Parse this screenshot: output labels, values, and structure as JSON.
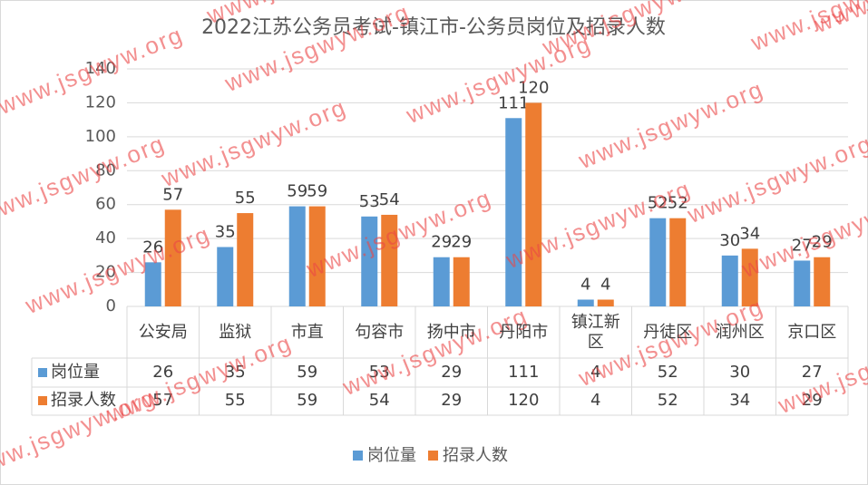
{
  "chart_data": {
    "type": "bar",
    "title": "2022江苏公务员考试-镇江市-公务员岗位及招录人数",
    "categories": [
      "公安局",
      "监狱",
      "市直",
      "句容市",
      "扬中市",
      "丹阳市",
      "镇江新区",
      "丹徒区",
      "润州区",
      "京口区"
    ],
    "series": [
      {
        "name": "岗位量",
        "color": "#5b9bd5",
        "values": [
          26,
          35,
          59,
          53,
          29,
          111,
          4,
          52,
          30,
          27
        ]
      },
      {
        "name": "招录人数",
        "color": "#ed7d31",
        "values": [
          57,
          55,
          59,
          54,
          29,
          120,
          4,
          52,
          34,
          29
        ]
      }
    ],
    "ylim": [
      0,
      140
    ],
    "yticks": [
      0,
      20,
      40,
      60,
      80,
      100,
      120,
      140
    ],
    "grid": true,
    "legend": "bottom",
    "data_table": true
  },
  "watermark": "www.jsgwyw.org"
}
